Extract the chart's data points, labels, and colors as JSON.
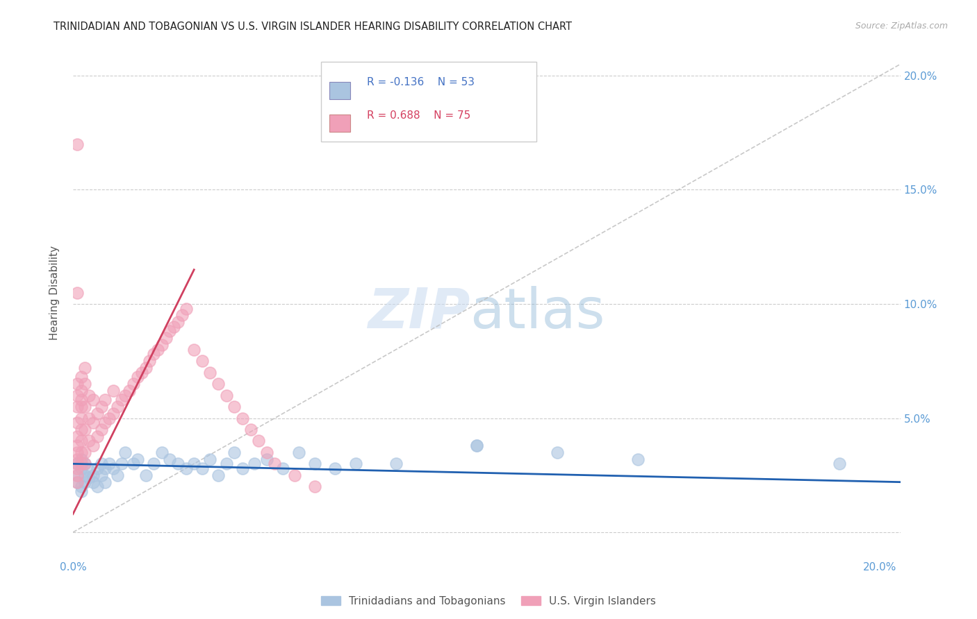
{
  "title": "TRINIDADIAN AND TOBAGONIAN VS U.S. VIRGIN ISLANDER HEARING DISABILITY CORRELATION CHART",
  "source": "Source: ZipAtlas.com",
  "ylabel": "Hearing Disability",
  "xlim": [
    0.0,
    0.205
  ],
  "ylim": [
    -0.005,
    0.215
  ],
  "xticks": [
    0.0,
    0.05,
    0.1,
    0.15,
    0.2
  ],
  "yticks": [
    0.0,
    0.05,
    0.1,
    0.15,
    0.2
  ],
  "xticklabels": [
    "0.0%",
    "",
    "",
    "",
    "20.0%"
  ],
  "right_yticklabels": [
    "",
    "5.0%",
    "10.0%",
    "15.0%",
    "20.0%"
  ],
  "series": [
    {
      "name": "Trinidadians and Tobagonians",
      "color": "#aac4e0",
      "R": -0.136,
      "N": 53,
      "line_color": "#2060b0"
    },
    {
      "name": "U.S. Virgin Islanders",
      "color": "#f0a0b8",
      "R": 0.688,
      "N": 75,
      "line_color": "#d04060"
    }
  ],
  "legend_R_color_blue": "#4472c4",
  "legend_R_color_pink": "#d44060",
  "background_color": "#ffffff",
  "grid_color": "#cccccc",
  "tick_color": "#5b9bd5",
  "blue_scatter_x": [
    0.001,
    0.001,
    0.001,
    0.002,
    0.002,
    0.002,
    0.002,
    0.003,
    0.003,
    0.003,
    0.004,
    0.004,
    0.005,
    0.005,
    0.006,
    0.006,
    0.007,
    0.007,
    0.008,
    0.008,
    0.009,
    0.01,
    0.011,
    0.012,
    0.013,
    0.015,
    0.016,
    0.018,
    0.02,
    0.022,
    0.024,
    0.026,
    0.028,
    0.03,
    0.032,
    0.034,
    0.036,
    0.038,
    0.04,
    0.042,
    0.045,
    0.048,
    0.052,
    0.056,
    0.06,
    0.065,
    0.07,
    0.08,
    0.1,
    0.12,
    0.14,
    0.19,
    0.1
  ],
  "blue_scatter_y": [
    0.025,
    0.03,
    0.022,
    0.028,
    0.032,
    0.02,
    0.018,
    0.025,
    0.022,
    0.03,
    0.027,
    0.024,
    0.025,
    0.022,
    0.028,
    0.02,
    0.025,
    0.03,
    0.028,
    0.022,
    0.03,
    0.028,
    0.025,
    0.03,
    0.035,
    0.03,
    0.032,
    0.025,
    0.03,
    0.035,
    0.032,
    0.03,
    0.028,
    0.03,
    0.028,
    0.032,
    0.025,
    0.03,
    0.035,
    0.028,
    0.03,
    0.032,
    0.028,
    0.035,
    0.03,
    0.028,
    0.03,
    0.03,
    0.038,
    0.035,
    0.032,
    0.03,
    0.038
  ],
  "pink_scatter_x": [
    0.001,
    0.001,
    0.001,
    0.001,
    0.001,
    0.001,
    0.001,
    0.001,
    0.001,
    0.001,
    0.001,
    0.001,
    0.002,
    0.002,
    0.002,
    0.002,
    0.002,
    0.002,
    0.002,
    0.002,
    0.002,
    0.003,
    0.003,
    0.003,
    0.003,
    0.003,
    0.003,
    0.004,
    0.004,
    0.004,
    0.005,
    0.005,
    0.005,
    0.006,
    0.006,
    0.007,
    0.007,
    0.008,
    0.008,
    0.009,
    0.01,
    0.01,
    0.011,
    0.012,
    0.013,
    0.014,
    0.015,
    0.016,
    0.017,
    0.018,
    0.019,
    0.02,
    0.021,
    0.022,
    0.023,
    0.024,
    0.025,
    0.026,
    0.027,
    0.028,
    0.03,
    0.032,
    0.034,
    0.036,
    0.038,
    0.04,
    0.042,
    0.044,
    0.046,
    0.048,
    0.05,
    0.055,
    0.06,
    0.001,
    0.001
  ],
  "pink_scatter_y": [
    0.03,
    0.032,
    0.025,
    0.028,
    0.022,
    0.035,
    0.038,
    0.042,
    0.048,
    0.055,
    0.06,
    0.065,
    0.03,
    0.035,
    0.04,
    0.045,
    0.05,
    0.055,
    0.058,
    0.062,
    0.068,
    0.03,
    0.035,
    0.045,
    0.055,
    0.065,
    0.072,
    0.04,
    0.05,
    0.06,
    0.038,
    0.048,
    0.058,
    0.042,
    0.052,
    0.045,
    0.055,
    0.048,
    0.058,
    0.05,
    0.052,
    0.062,
    0.055,
    0.058,
    0.06,
    0.062,
    0.065,
    0.068,
    0.07,
    0.072,
    0.075,
    0.078,
    0.08,
    0.082,
    0.085,
    0.088,
    0.09,
    0.092,
    0.095,
    0.098,
    0.08,
    0.075,
    0.07,
    0.065,
    0.06,
    0.055,
    0.05,
    0.045,
    0.04,
    0.035,
    0.03,
    0.025,
    0.02,
    0.105,
    0.17
  ],
  "diag_line": [
    [
      0.0,
      0.205
    ],
    [
      0.0,
      0.205
    ]
  ],
  "blue_trend_x": [
    0.0,
    0.205
  ],
  "blue_trend_y": [
    0.03,
    0.022
  ],
  "pink_trend_x": [
    0.0,
    0.03
  ],
  "pink_trend_y": [
    0.008,
    0.115
  ]
}
